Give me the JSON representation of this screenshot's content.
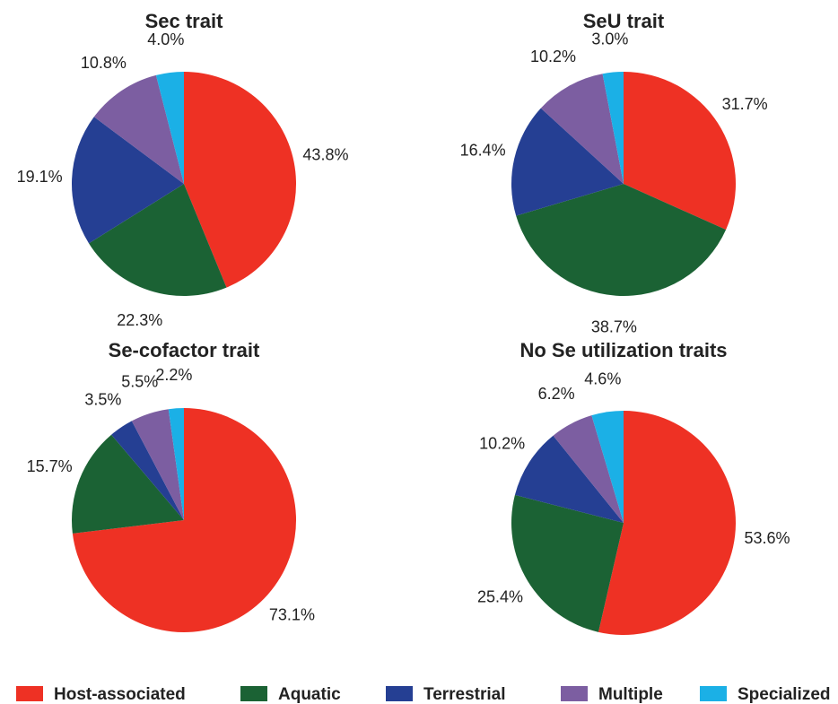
{
  "chart_data": [
    {
      "type": "pie",
      "title": "Sec trait",
      "values": [
        43.8,
        22.3,
        19.1,
        10.8,
        4.0
      ],
      "value_labels": [
        "43.8%",
        "22.3%",
        "19.1%",
        "10.8%",
        "4.0%"
      ]
    },
    {
      "type": "pie",
      "title": "SeU trait",
      "values": [
        31.7,
        38.7,
        16.4,
        10.2,
        3.0
      ],
      "value_labels": [
        "31.7%",
        "38.7%",
        "16.4%",
        "10.2%",
        "3.0%"
      ]
    },
    {
      "type": "pie",
      "title": "Se-cofactor trait",
      "values": [
        73.1,
        15.7,
        3.5,
        5.5,
        2.2
      ],
      "value_labels": [
        "73.1%",
        "15.7%",
        "3.5%",
        "5.5%",
        "2.2%"
      ]
    },
    {
      "type": "pie",
      "title": "No Se utilization traits",
      "values": [
        53.6,
        25.4,
        10.2,
        6.2,
        4.6
      ],
      "value_labels": [
        "53.6%",
        "25.4%",
        "10.2%",
        "6.2%",
        "4.6%"
      ]
    }
  ],
  "legend": {
    "labels": [
      "Host-associated",
      "Aquatic",
      "Terrestrial",
      "Multiple",
      "Specialized"
    ],
    "colors": [
      "#ee3124",
      "#1b6234",
      "#253f93",
      "#7c5ea1",
      "#1bb0e6"
    ]
  }
}
